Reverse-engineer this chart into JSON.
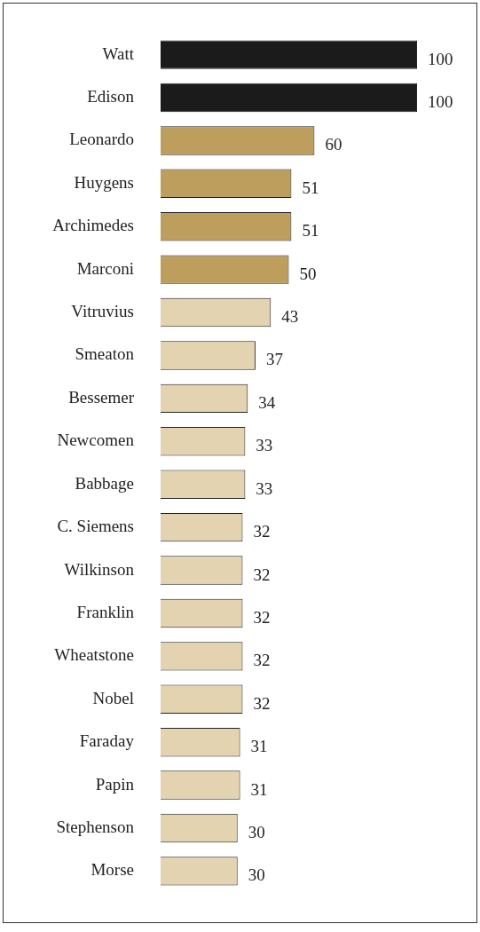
{
  "chart_data": {
    "type": "bar",
    "orientation": "horizontal",
    "data_labels": true,
    "grid": false,
    "legend": false,
    "categories": [
      "Watt",
      "Edison",
      "Leonardo",
      "Huygens",
      "Archimedes",
      "Marconi",
      "Vitruvius",
      "Smeaton",
      "Bessemer",
      "Newcomen",
      "Babbage",
      "C. Siemens",
      "Wilkinson",
      "Franklin",
      "Wheatstone",
      "Nobel",
      "Faraday",
      "Papin",
      "Stephenson",
      "Morse"
    ],
    "values": [
      100,
      100,
      60,
      51,
      51,
      50,
      43,
      37,
      34,
      33,
      33,
      32,
      32,
      32,
      32,
      32,
      31,
      31,
      30,
      30
    ],
    "colors": [
      "#1b1b1b",
      "#1b1b1b",
      "#bd9e5c",
      "#bd9e5c",
      "#bd9e5c",
      "#bd9e5c",
      "#e3d3b1",
      "#e3d3b1",
      "#e3d3b1",
      "#e3d3b1",
      "#e3d3b1",
      "#e3d3b1",
      "#e3d3b1",
      "#e3d3b1",
      "#e3d3b1",
      "#e3d3b1",
      "#e3d3b1",
      "#e3d3b1",
      "#e3d3b1",
      "#e3d3b1"
    ]
  }
}
